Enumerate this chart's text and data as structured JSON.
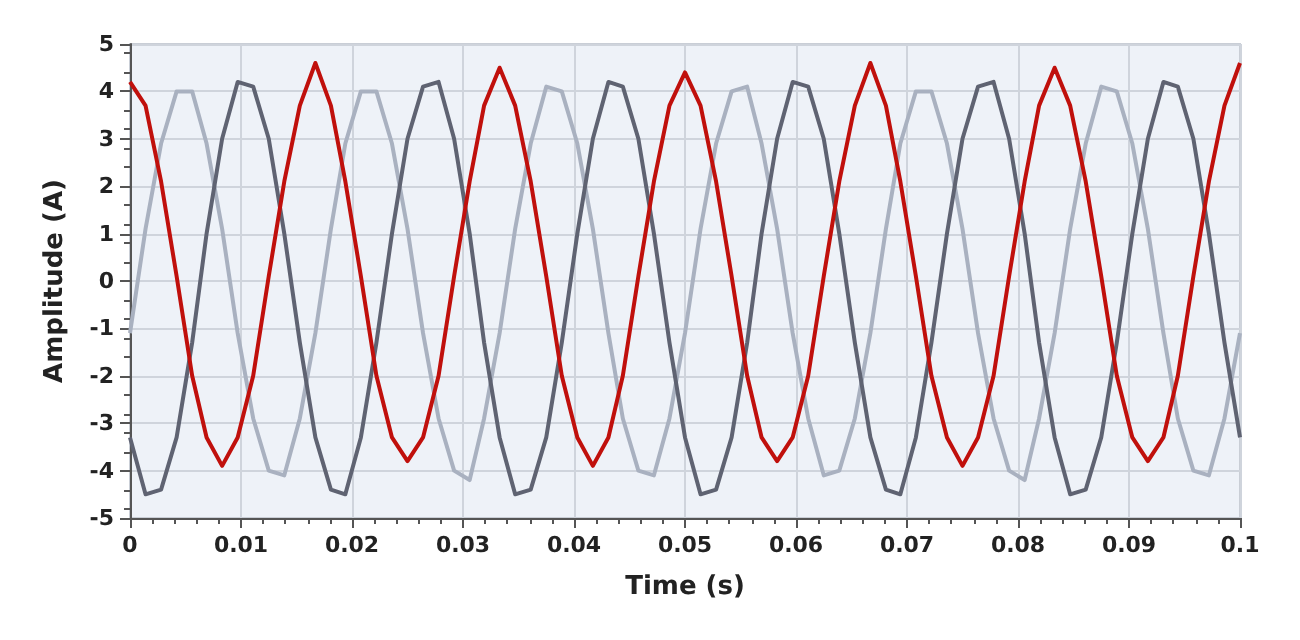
{
  "chart_data": {
    "type": "line",
    "xlabel": "Time (s)",
    "ylabel": "Amplitude (A)",
    "x": [
      0,
      0.0014,
      0.0028,
      0.0042,
      0.0056,
      0.0069,
      0.0083,
      0.0097,
      0.0111,
      0.0125,
      0.0139,
      0.0153,
      0.0167,
      0.0181,
      0.0194,
      0.0208,
      0.0222,
      0.0236,
      0.025,
      0.0264,
      0.0278,
      0.0292,
      0.0306,
      0.0319,
      0.0333,
      0.0347,
      0.0361,
      0.0375,
      0.0389,
      0.0403,
      0.0417,
      0.0431,
      0.0444,
      0.0458,
      0.0472,
      0.0486,
      0.05,
      0.0514,
      0.0528,
      0.0542,
      0.0556,
      0.0569,
      0.0583,
      0.0597,
      0.0611,
      0.0625,
      0.0639,
      0.0653,
      0.0667,
      0.0681,
      0.0694,
      0.0708,
      0.0722,
      0.0736,
      0.075,
      0.0764,
      0.0778,
      0.0792,
      0.0806,
      0.0819,
      0.0833,
      0.0847,
      0.0861,
      0.0875,
      0.0889,
      0.0903,
      0.0917,
      0.0931,
      0.0944,
      0.0958,
      0.0972,
      0.0986,
      0.1
    ],
    "series": [
      {
        "color": "#a9b1c0",
        "values": [
          -1.1,
          1.1,
          2.9,
          4.0,
          4.0,
          2.9,
          1.1,
          -1.1,
          -2.9,
          -4.0,
          -4.1,
          -2.9,
          -1.1,
          1.1,
          2.9,
          4.0,
          4.0,
          2.9,
          1.1,
          -1.1,
          -2.9,
          -4.0,
          -4.2,
          -2.9,
          -1.1,
          1.1,
          2.9,
          4.1,
          4.0,
          2.9,
          1.1,
          -1.1,
          -2.9,
          -4.0,
          -4.1,
          -2.9,
          -1.1,
          1.1,
          2.9,
          4.0,
          4.1,
          2.9,
          1.1,
          -1.1,
          -2.9,
          -4.1,
          -4.0,
          -2.9,
          -1.1,
          1.1,
          2.9,
          4.0,
          4.0,
          2.9,
          1.1,
          -1.1,
          -2.9,
          -4.0,
          -4.2,
          -2.9,
          -1.1,
          1.1,
          2.9,
          4.1,
          4.0,
          2.9,
          1.1,
          -1.1,
          -2.9,
          -4.0,
          -4.1,
          -2.9,
          -1.1
        ]
      },
      {
        "color": "#5f6372",
        "values": [
          -3.3,
          -4.5,
          -4.4,
          -3.3,
          -1.3,
          1.0,
          3.0,
          4.2,
          4.1,
          3.0,
          1.0,
          -1.3,
          -3.3,
          -4.4,
          -4.5,
          -3.3,
          -1.3,
          1.0,
          3.0,
          4.1,
          4.2,
          3.0,
          1.0,
          -1.3,
          -3.3,
          -4.5,
          -4.4,
          -3.3,
          -1.3,
          1.0,
          3.0,
          4.2,
          4.1,
          3.0,
          1.0,
          -1.3,
          -3.3,
          -4.5,
          -4.4,
          -3.3,
          -1.3,
          1.0,
          3.0,
          4.2,
          4.1,
          3.0,
          1.0,
          -1.3,
          -3.3,
          -4.4,
          -4.5,
          -3.3,
          -1.3,
          1.0,
          3.0,
          4.1,
          4.2,
          3.0,
          1.0,
          -1.3,
          -3.3,
          -4.5,
          -4.4,
          -3.3,
          -1.3,
          1.0,
          3.0,
          4.2,
          4.1,
          3.0,
          1.0,
          -1.3,
          -3.3
        ]
      },
      {
        "color": "#c0100c",
        "values": [
          4.2,
          3.7,
          2.1,
          0.1,
          -2.0,
          -3.3,
          -3.9,
          -3.3,
          -2.0,
          0.1,
          2.1,
          3.7,
          4.6,
          3.7,
          2.1,
          0.1,
          -2.0,
          -3.3,
          -3.8,
          -3.3,
          -2.0,
          0.1,
          2.1,
          3.7,
          4.5,
          3.7,
          2.1,
          0.1,
          -2.0,
          -3.3,
          -3.9,
          -3.3,
          -2.0,
          0.1,
          2.1,
          3.7,
          4.4,
          3.7,
          2.1,
          0.1,
          -2.0,
          -3.3,
          -3.8,
          -3.3,
          -2.0,
          0.1,
          2.1,
          3.7,
          4.6,
          3.7,
          2.1,
          0.1,
          -2.0,
          -3.3,
          -3.9,
          -3.3,
          -2.0,
          0.1,
          2.1,
          3.7,
          4.5,
          3.7,
          2.1,
          0.1,
          -2.0,
          -3.3,
          -3.8,
          -3.3,
          -2.0,
          0.1,
          2.1,
          3.7,
          4.6
        ]
      }
    ],
    "xlim": [
      0,
      0.1
    ],
    "xticks": [
      0,
      0.01,
      0.02,
      0.03,
      0.04,
      0.05,
      0.06,
      0.07,
      0.08,
      0.09,
      0.1
    ],
    "ylim": [
      -5,
      5
    ],
    "yticks": [
      -5,
      -4,
      -3,
      -2,
      -1,
      0,
      1,
      2,
      3,
      4,
      5
    ],
    "grid": true,
    "marker": "none",
    "line_style": "solid"
  }
}
